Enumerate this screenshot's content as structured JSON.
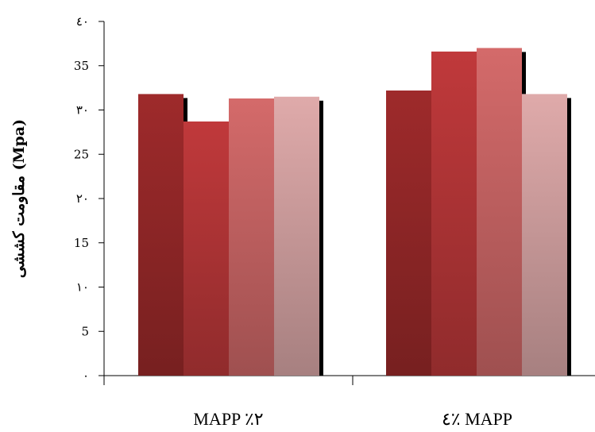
{
  "chart_data": {
    "type": "bar",
    "categories": [
      "MAPP ٪۲",
      "MAPP ٪٤"
    ],
    "series": [
      {
        "values": [
          31.8,
          32.2
        ],
        "color": "#9e2a2b"
      },
      {
        "values": [
          28.7,
          36.6
        ],
        "color": "#c0393b"
      },
      {
        "values": [
          31.3,
          37.0
        ],
        "color": "#d46a6a"
      },
      {
        "values": [
          31.5,
          31.8
        ],
        "color": "#dfaaaa"
      }
    ],
    "ylabel": "مقاومت کششی (Mpa)",
    "ylim": [
      0,
      40
    ],
    "yticks": [
      {
        "value": 0,
        "label": "۰"
      },
      {
        "value": 5,
        "label": "5"
      },
      {
        "value": 10,
        "label": "۱۰"
      },
      {
        "value": 15,
        "label": "15"
      },
      {
        "value": 20,
        "label": "۲۰"
      },
      {
        "value": 25,
        "label": "25"
      },
      {
        "value": 30,
        "label": "۳۰"
      },
      {
        "value": 35,
        "label": "35"
      },
      {
        "value": 40,
        "label": "٤۰"
      }
    ],
    "grid": false,
    "legend": "none",
    "shadow": true
  }
}
